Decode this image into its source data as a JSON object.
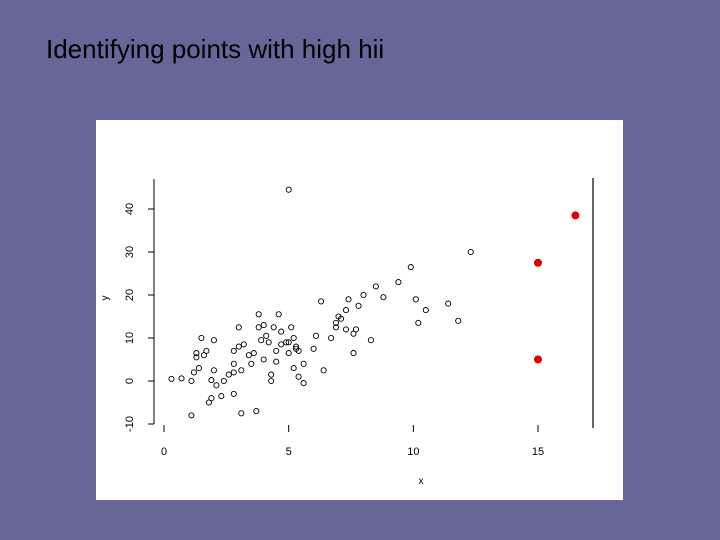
{
  "slide": {
    "title": "Identifying points with high hii"
  },
  "chart_data": {
    "type": "scatter",
    "title": "",
    "xlabel": "x",
    "ylabel": "y",
    "xlim": [
      0,
      17
    ],
    "ylim": [
      -10,
      47
    ],
    "x_ticks": [
      0,
      5,
      10,
      15
    ],
    "y_ticks": [
      -10,
      0,
      10,
      20,
      30,
      40
    ],
    "grid": false,
    "colors": {
      "regular": "#000000",
      "high_leverage": "#dd0000"
    },
    "series": [
      {
        "name": "",
        "marker": "open-circle",
        "points": [
          [
            0.3,
            0.5
          ],
          [
            0.7,
            0.6
          ],
          [
            1.1,
            -8
          ],
          [
            1.1,
            0
          ],
          [
            1.2,
            2
          ],
          [
            1.4,
            3
          ],
          [
            1.3,
            5.5
          ],
          [
            1.3,
            6.5
          ],
          [
            1.5,
            10
          ],
          [
            1.6,
            6
          ],
          [
            1.7,
            7
          ],
          [
            1.8,
            -5
          ],
          [
            1.9,
            -4
          ],
          [
            1.9,
            0.2
          ],
          [
            2.0,
            2.5
          ],
          [
            2.0,
            9.5
          ],
          [
            2.1,
            -1
          ],
          [
            2.3,
            -3.5
          ],
          [
            2.4,
            0
          ],
          [
            2.6,
            1.5
          ],
          [
            2.8,
            -3
          ],
          [
            2.8,
            2
          ],
          [
            2.8,
            7
          ],
          [
            2.8,
            4
          ],
          [
            3.0,
            8
          ],
          [
            3.0,
            12.5
          ],
          [
            3.1,
            -7.5
          ],
          [
            3.2,
            8.5
          ],
          [
            3.1,
            2.5
          ],
          [
            3.4,
            6
          ],
          [
            3.5,
            4
          ],
          [
            3.6,
            6.5
          ],
          [
            3.7,
            -7
          ],
          [
            3.8,
            12.5
          ],
          [
            3.8,
            15.5
          ],
          [
            3.9,
            9.5
          ],
          [
            4.0,
            5
          ],
          [
            4.0,
            13
          ],
          [
            4.1,
            10.5
          ],
          [
            4.2,
            9
          ],
          [
            4.3,
            0
          ],
          [
            4.3,
            1.5
          ],
          [
            4.4,
            12.5
          ],
          [
            4.5,
            4.5
          ],
          [
            4.5,
            7
          ],
          [
            4.6,
            15.5
          ],
          [
            4.7,
            8.5
          ],
          [
            4.7,
            11.5
          ],
          [
            4.9,
            9
          ],
          [
            5.0,
            9
          ],
          [
            5.0,
            6.5
          ],
          [
            5.1,
            12.5
          ],
          [
            5.2,
            10
          ],
          [
            5.3,
            8
          ],
          [
            5.3,
            7.5
          ],
          [
            5.4,
            7
          ],
          [
            5.4,
            1
          ],
          [
            5.2,
            3
          ],
          [
            5.6,
            -0.5
          ],
          [
            5.6,
            4
          ],
          [
            5.0,
            44.5
          ],
          [
            6.0,
            7.5
          ],
          [
            6.1,
            10.5
          ],
          [
            6.3,
            18.5
          ],
          [
            6.4,
            2.5
          ],
          [
            6.7,
            10
          ],
          [
            6.9,
            12.5
          ],
          [
            6.9,
            13.5
          ],
          [
            7.0,
            15
          ],
          [
            7.1,
            14.5
          ],
          [
            7.3,
            12
          ],
          [
            7.3,
            16.5
          ],
          [
            7.4,
            19
          ],
          [
            7.6,
            6.5
          ],
          [
            7.6,
            11
          ],
          [
            7.7,
            12
          ],
          [
            7.8,
            17.5
          ],
          [
            8.0,
            20
          ],
          [
            8.3,
            9.5
          ],
          [
            8.5,
            22
          ],
          [
            8.8,
            19.5
          ],
          [
            9.4,
            23
          ],
          [
            9.9,
            26.5
          ],
          [
            10.1,
            19
          ],
          [
            10.2,
            13.5
          ],
          [
            10.5,
            16.5
          ],
          [
            11.4,
            18
          ],
          [
            11.8,
            14
          ],
          [
            12.3,
            30
          ]
        ]
      },
      {
        "name": "",
        "marker": "filled-circle",
        "color": "#dd0000",
        "points": [
          [
            15.0,
            27.5
          ],
          [
            15.0,
            5
          ],
          [
            16.5,
            38.5
          ]
        ]
      }
    ]
  }
}
